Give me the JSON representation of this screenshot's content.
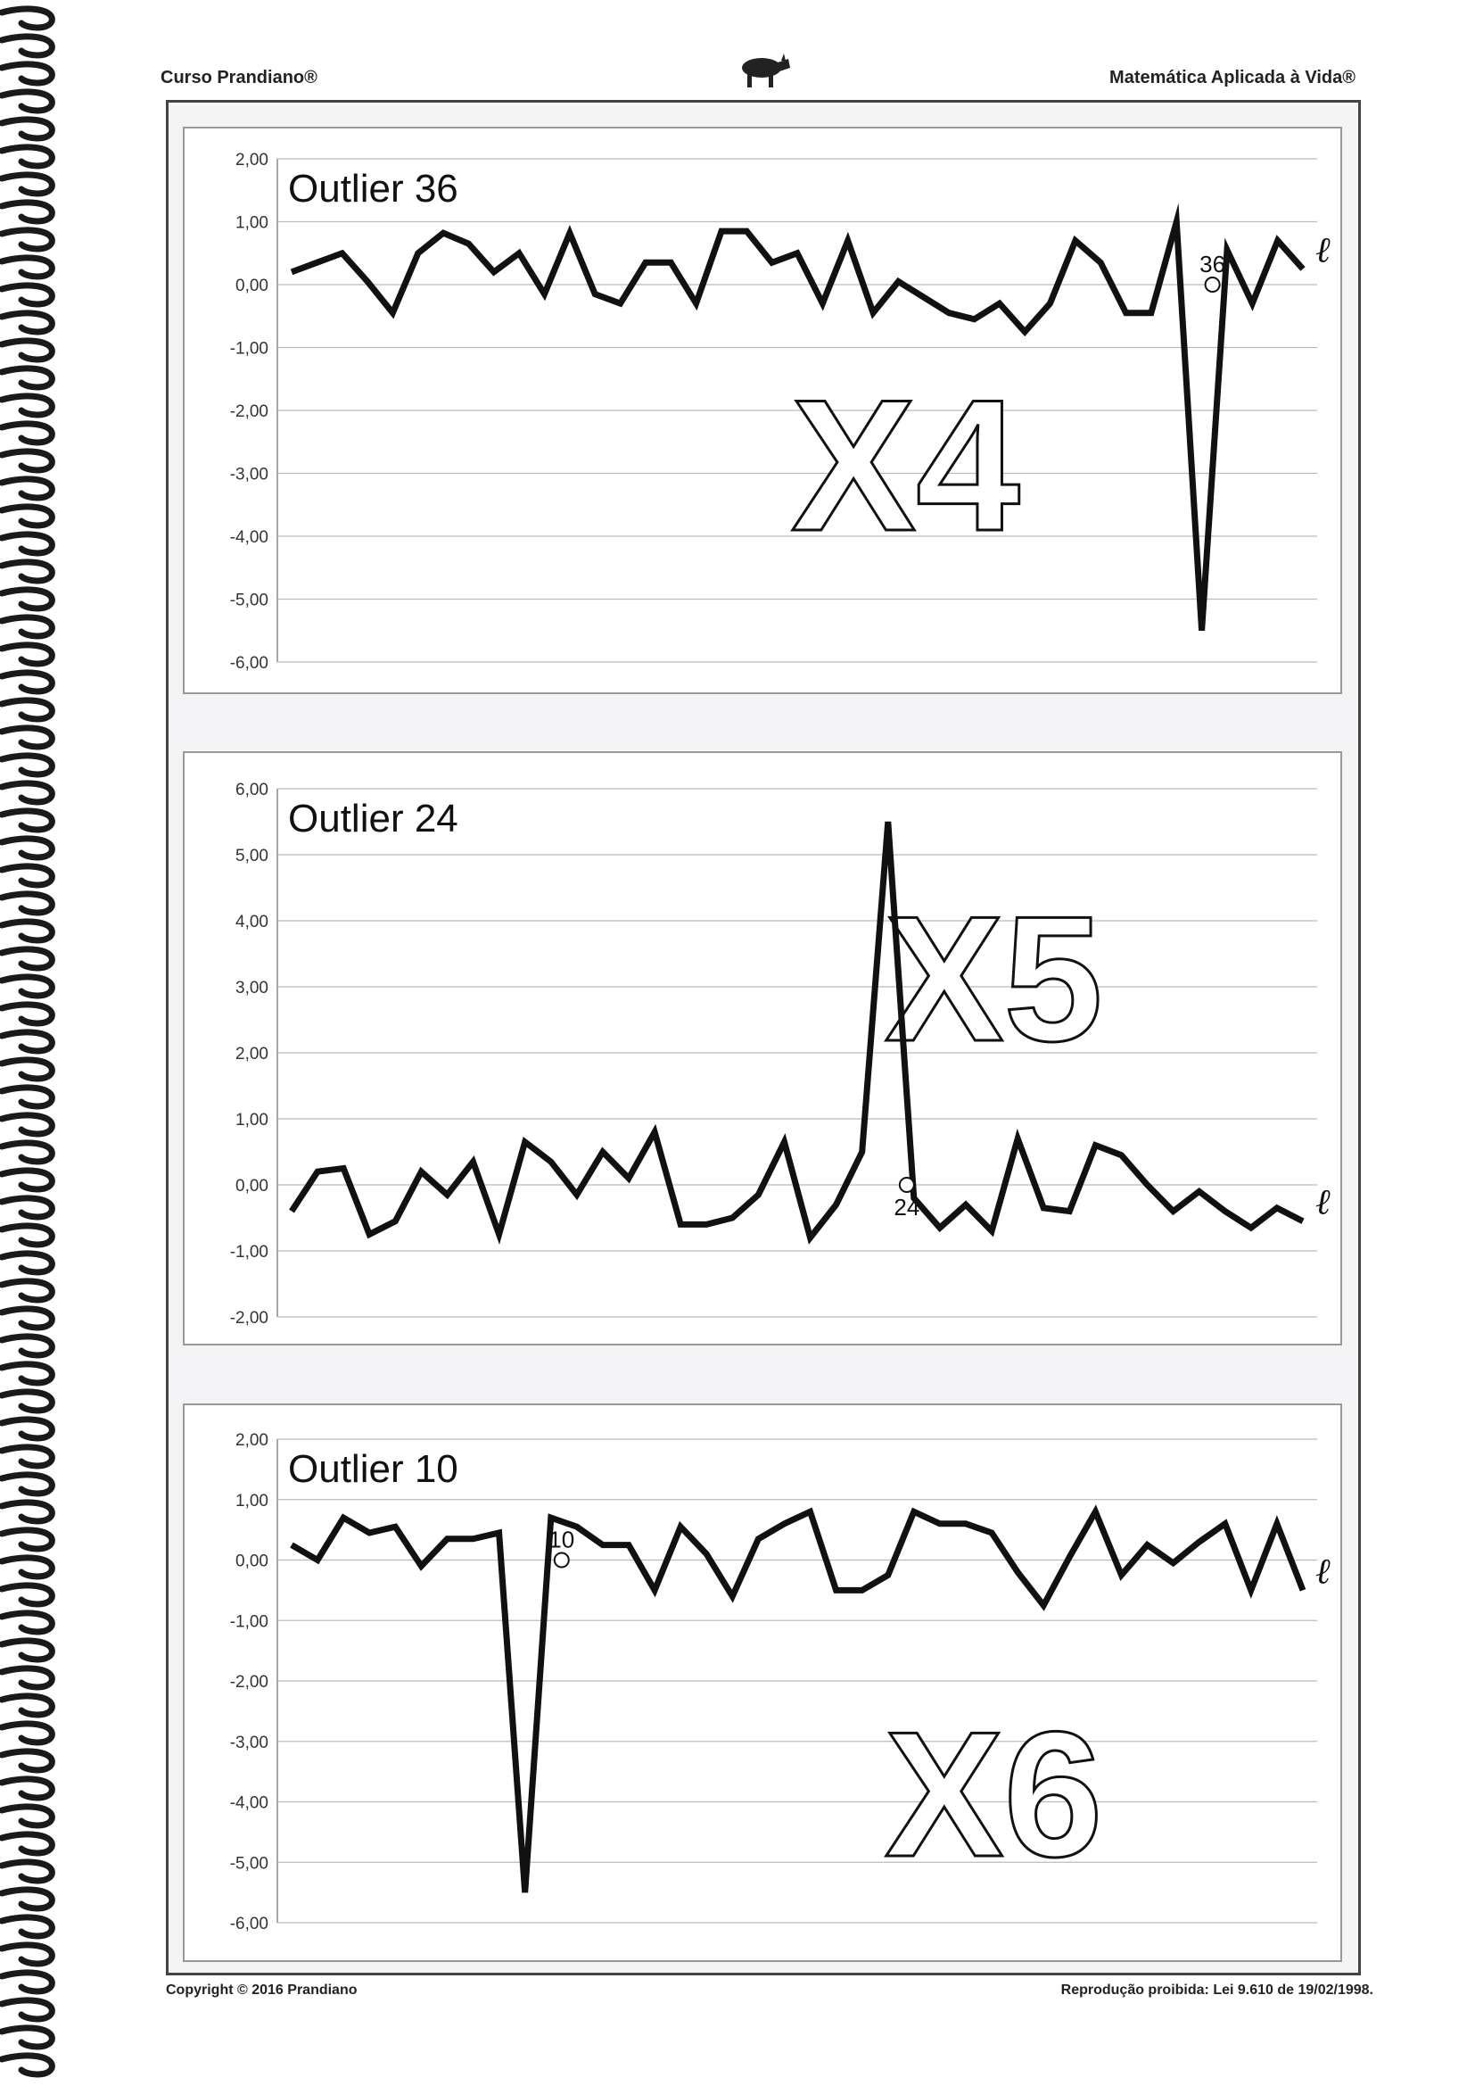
{
  "header": {
    "left": "Curso Prandiano®",
    "right": "Matemática Aplicada à Vida®"
  },
  "footer": {
    "left": "Copyright © 2016 Prandiano",
    "right": "Reprodução proibida: Lei 9.610 de 19/02/1998."
  },
  "icons": [
    "pig-icon"
  ],
  "colors": {
    "line": "#111111",
    "grid": "#bbbbbb"
  },
  "chart_data": [
    {
      "type": "line",
      "title": "Outlier 36",
      "big_label": "X4",
      "end_label": "ℓ",
      "outlier_label": "36",
      "outlier_index": 36,
      "yticks": [
        "2,00",
        "1,00",
        "0,00",
        "-1,00",
        "-2,00",
        "-3,00",
        "-4,00",
        "-5,00",
        "-6,00"
      ],
      "ylim": [
        -6,
        2
      ],
      "grid": true,
      "values": [
        0.2,
        0.35,
        0.5,
        0.05,
        -0.45,
        0.5,
        0.82,
        0.65,
        0.2,
        0.5,
        -0.15,
        0.82,
        -0.15,
        -0.3,
        0.35,
        0.35,
        -0.3,
        0.85,
        0.85,
        0.35,
        0.5,
        -0.3,
        0.7,
        -0.45,
        0.05,
        -0.2,
        -0.45,
        -0.55,
        -0.3,
        -0.75,
        -0.3,
        0.7,
        0.35,
        -0.45,
        -0.45,
        1.0,
        -5.5,
        0.55,
        -0.3,
        0.7,
        0.25
      ]
    },
    {
      "type": "line",
      "title": "Outlier 24",
      "big_label": "X5",
      "end_label": "ℓ",
      "outlier_label": "24",
      "outlier_index": 24,
      "yticks": [
        "6,00",
        "5,00",
        "4,00",
        "3,00",
        "2,00",
        "1,00",
        "0,00",
        "-1,00",
        "-2,00"
      ],
      "ylim": [
        -2,
        6
      ],
      "grid": true,
      "values": [
        -0.4,
        0.2,
        0.25,
        -0.75,
        -0.55,
        0.2,
        -0.15,
        0.35,
        -0.75,
        0.65,
        0.35,
        -0.15,
        0.5,
        0.1,
        0.8,
        -0.6,
        -0.6,
        -0.5,
        -0.15,
        0.65,
        -0.8,
        -0.3,
        0.5,
        5.5,
        -0.2,
        -0.65,
        -0.3,
        -0.7,
        0.7,
        -0.35,
        -0.4,
        0.6,
        0.45,
        0.0,
        -0.4,
        -0.1,
        -0.4,
        -0.65,
        -0.35,
        -0.55
      ]
    },
    {
      "type": "line",
      "title": "Outlier 10",
      "big_label": "X6",
      "end_label": "ℓ",
      "outlier_label": "10",
      "outlier_index": 10,
      "yticks": [
        "2,00",
        "1,00",
        "0,00",
        "-1,00",
        "-2,00",
        "-3,00",
        "-4,00",
        "-5,00",
        "-6,00"
      ],
      "ylim": [
        -6,
        2
      ],
      "grid": true,
      "values": [
        0.25,
        0.0,
        0.7,
        0.45,
        0.55,
        -0.1,
        0.35,
        0.35,
        0.45,
        -5.5,
        0.7,
        0.55,
        0.25,
        0.25,
        -0.5,
        0.55,
        0.1,
        -0.6,
        0.35,
        0.6,
        0.8,
        -0.5,
        -0.5,
        -0.25,
        0.8,
        0.6,
        0.6,
        0.45,
        -0.2,
        -0.75,
        0.05,
        0.8,
        -0.25,
        0.25,
        -0.05,
        0.3,
        0.6,
        -0.5,
        0.6,
        -0.5
      ]
    }
  ]
}
